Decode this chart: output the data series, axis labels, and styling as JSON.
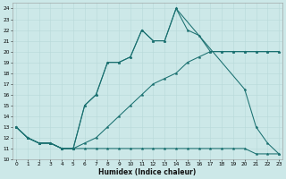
{
  "xlabel": "Humidex (Indice chaleur)",
  "bg_color": "#cce8e8",
  "grid_color": "#b8d8d8",
  "line_color": "#1a7070",
  "xlim": [
    -0.3,
    23.3
  ],
  "ylim": [
    10,
    24.5
  ],
  "lines": [
    {
      "x": [
        0,
        1,
        2,
        3,
        4,
        5,
        6,
        7,
        8,
        9,
        10,
        11,
        12,
        13,
        14,
        15,
        16,
        17,
        18,
        19,
        20,
        21,
        22,
        23
      ],
      "y": [
        13,
        12,
        11.5,
        11.5,
        11,
        11,
        11,
        11,
        11,
        11,
        11,
        11,
        11,
        11,
        11,
        11,
        11,
        11,
        11,
        11,
        11,
        10.5,
        10.5,
        10.5
      ]
    },
    {
      "x": [
        0,
        1,
        2,
        3,
        4,
        5,
        6,
        7,
        8,
        9,
        10,
        11,
        12,
        13,
        14,
        15,
        16,
        17,
        18,
        19,
        20,
        21,
        22,
        23
      ],
      "y": [
        13,
        12,
        11.5,
        11.5,
        11,
        11,
        11.5,
        12,
        13,
        14,
        15,
        16,
        17,
        17.5,
        18,
        19,
        19.5,
        20,
        20,
        20,
        20,
        20,
        20,
        20
      ]
    },
    {
      "x": [
        0,
        1,
        2,
        3,
        4,
        5,
        6,
        7,
        8,
        9,
        10,
        11,
        12,
        13,
        14,
        15,
        16,
        17,
        18,
        19,
        20,
        21,
        22,
        23
      ],
      "y": [
        13,
        12,
        11.5,
        11.5,
        11,
        11,
        15,
        16,
        19,
        19,
        19.5,
        22,
        21,
        21,
        24,
        22,
        21.5,
        20,
        20,
        20,
        20,
        20,
        20,
        20
      ]
    },
    {
      "x": [
        0,
        1,
        2,
        3,
        4,
        5,
        6,
        7,
        8,
        9,
        10,
        11,
        12,
        13,
        14,
        20,
        21,
        22,
        23
      ],
      "y": [
        13,
        12,
        11.5,
        11.5,
        11,
        11,
        15,
        16,
        19,
        19,
        19.5,
        22,
        21,
        21,
        24,
        16.5,
        13,
        11.5,
        10.5
      ]
    }
  ]
}
